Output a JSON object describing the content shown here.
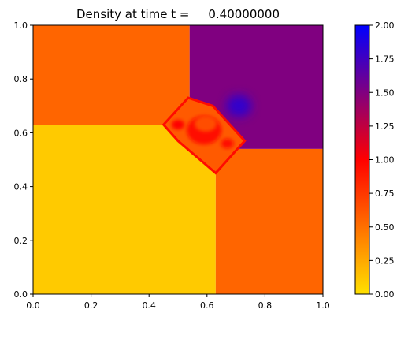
{
  "chart_data": {
    "type": "heatmap",
    "title": "Density at time t =     0.40000000",
    "xlabel": "",
    "ylabel": "",
    "xlim": [
      0.0,
      1.0
    ],
    "ylim": [
      0.0,
      1.0
    ],
    "xticks": [
      "0.0",
      "0.2",
      "0.4",
      "0.6",
      "0.8",
      "1.0"
    ],
    "yticks": [
      "0.0",
      "0.2",
      "0.4",
      "0.6",
      "0.8",
      "1.0"
    ],
    "grid": false,
    "colorbar": {
      "range": [
        0.0,
        2.0
      ],
      "ticks": [
        "0.00",
        "0.25",
        "0.50",
        "0.75",
        "1.00",
        "1.25",
        "1.50",
        "1.75",
        "2.00"
      ],
      "colors": [
        "#ffe100",
        "#ff7000",
        "#ff0000",
        "#800080",
        "#0000ff"
      ]
    },
    "regions": [
      {
        "name": "lower-left quadrant",
        "density": 0.1,
        "x": [
          0.0,
          0.63
        ],
        "y": [
          0.0,
          0.63
        ]
      },
      {
        "name": "lower-right quadrant",
        "density": 0.55,
        "x": [
          0.63,
          1.0
        ],
        "y": [
          0.0,
          0.54
        ]
      },
      {
        "name": "upper-left quadrant",
        "density": 0.55,
        "x": [
          0.0,
          0.54
        ],
        "y": [
          0.63,
          1.0
        ]
      },
      {
        "name": "upper-right quadrant",
        "density": 1.5,
        "x": [
          0.54,
          1.0
        ],
        "y": [
          0.54,
          1.0
        ]
      },
      {
        "name": "central structure",
        "density": 0.75,
        "center": [
          0.59,
          0.61
        ]
      },
      {
        "name": "dense spot",
        "density": 1.8,
        "center": [
          0.71,
          0.7
        ]
      }
    ]
  }
}
